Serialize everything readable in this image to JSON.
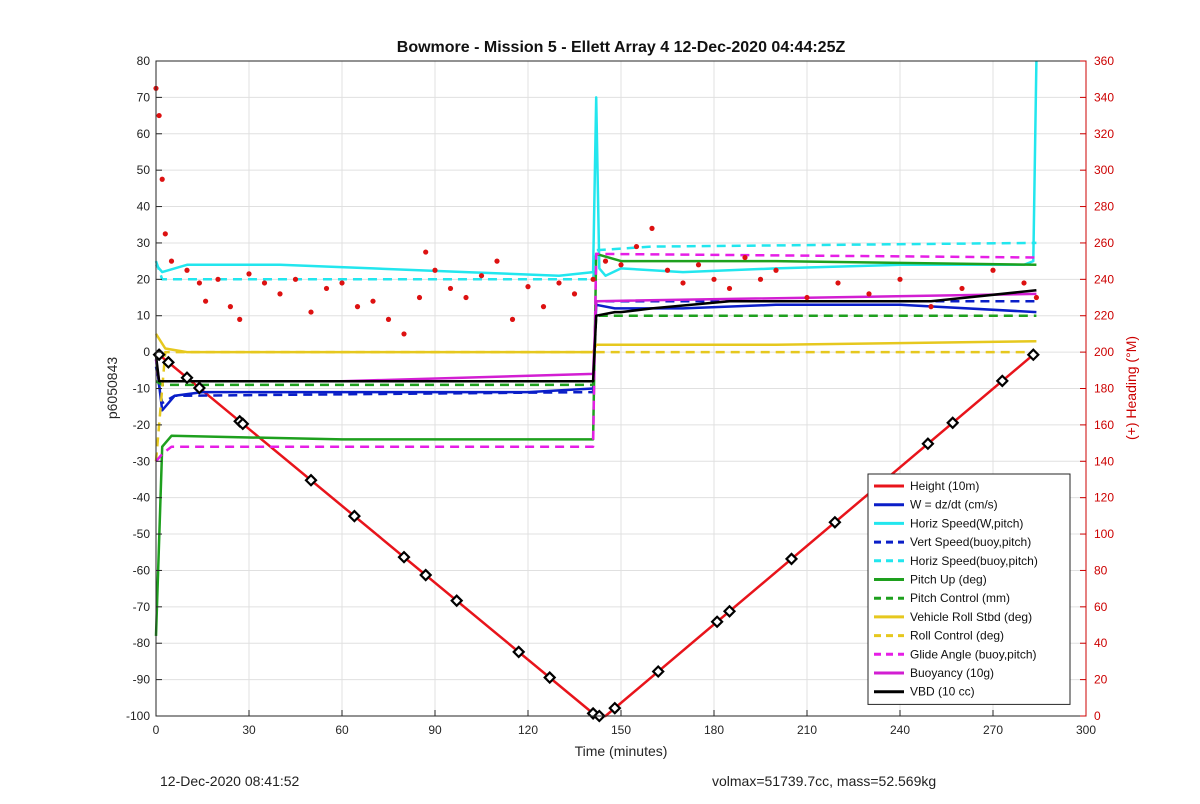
{
  "chart_data": {
    "type": "line",
    "title": "Bowmore - Mission 5 - Ellett Array 4 12-Dec-2020 04:44:25Z",
    "xlabel": "Time (minutes)",
    "ylabel": "p6050843",
    "y2label": "(+) Heading (°M)",
    "xlim": [
      0,
      300
    ],
    "ylim": [
      -100,
      80
    ],
    "y2lim": [
      0,
      360
    ],
    "x_ticks": [
      0,
      30,
      60,
      90,
      120,
      150,
      180,
      210,
      240,
      270,
      300
    ],
    "y_ticks": [
      80,
      70,
      60,
      50,
      40,
      30,
      20,
      10,
      0,
      -10,
      -20,
      -30,
      -40,
      -50,
      -60,
      -70,
      -80,
      -90,
      -100
    ],
    "y2_ticks": [
      360,
      340,
      320,
      300,
      280,
      260,
      240,
      220,
      200,
      180,
      160,
      140,
      120,
      100,
      80,
      60,
      40,
      20,
      0
    ],
    "grid": true,
    "legend_position": "bottom-right",
    "colors": {
      "left_axis": "#222222",
      "right_axis": "#cc0000",
      "grid": "#e0e0e0"
    },
    "series": [
      {
        "name": "Height (10m)",
        "color": "#e8141b",
        "style": "solid",
        "x": [
          0,
          142,
          145,
          284
        ],
        "y": [
          0,
          -100,
          -100,
          0
        ]
      },
      {
        "name": "W = dz/dt (cm/s)",
        "color": "#0a1ec8",
        "style": "solid",
        "x": [
          0,
          2,
          6,
          15,
          60,
          120,
          141,
          142,
          148,
          170,
          200,
          240,
          284
        ],
        "y": [
          -2,
          -16,
          -12,
          -11,
          -11,
          -11,
          -10,
          13,
          12,
          12,
          13,
          13,
          11
        ]
      },
      {
        "name": "Horiz Speed(W,pitch)",
        "color": "#22e6ee",
        "style": "solid",
        "x": [
          0,
          2,
          10,
          40,
          70,
          100,
          130,
          141,
          142,
          143,
          145,
          150,
          170,
          200,
          240,
          280,
          283,
          284
        ],
        "y": [
          24,
          22,
          24,
          24,
          23,
          22,
          21,
          22,
          70,
          23,
          21,
          23,
          22,
          23,
          24,
          24,
          25,
          80
        ]
      },
      {
        "name": "Vert Speed(buoy,pitch)",
        "color": "#0a1ec8",
        "style": "dashed",
        "x": [
          0,
          2,
          6,
          141,
          142,
          284
        ],
        "y": [
          -4,
          -14,
          -12,
          -11,
          14,
          14
        ]
      },
      {
        "name": "Horiz Speed(buoy,pitch)",
        "color": "#22e6ee",
        "style": "dashed",
        "x": [
          0,
          2,
          141,
          142,
          160,
          284
        ],
        "y": [
          25,
          20,
          20,
          28,
          29,
          30
        ]
      },
      {
        "name": "Pitch Up (deg)",
        "color": "#1ea01e",
        "style": "solid",
        "x": [
          0,
          2,
          5,
          60,
          120,
          141,
          142,
          150,
          200,
          284
        ],
        "y": [
          -78,
          -26,
          -23,
          -24,
          -24,
          -24,
          27,
          25,
          25,
          24
        ]
      },
      {
        "name": "Pitch Control (mm)",
        "color": "#1ea01e",
        "style": "dashed",
        "x": [
          0,
          2,
          141,
          142,
          284
        ],
        "y": [
          -8,
          -9,
          -9,
          10,
          10
        ]
      },
      {
        "name": "Vehicle Roll Stbd (deg)",
        "color": "#e6c81e",
        "style": "solid",
        "x": [
          0,
          3,
          10,
          60,
          120,
          141,
          142,
          150,
          200,
          284
        ],
        "y": [
          5,
          1,
          0,
          0,
          0,
          0,
          2,
          2,
          2,
          3
        ]
      },
      {
        "name": "Roll Control (deg)",
        "color": "#e6c81e",
        "style": "dashed",
        "x": [
          0,
          3,
          141,
          142,
          284
        ],
        "y": [
          -30,
          0,
          0,
          0,
          0
        ]
      },
      {
        "name": "Glide Angle (buoy,pitch)",
        "color": "#e61ee6",
        "style": "dashed",
        "x": [
          0,
          2,
          5,
          141,
          142,
          284
        ],
        "y": [
          -30,
          -28,
          -26,
          -26,
          27,
          26
        ]
      },
      {
        "name": "Buoyancy (10g)",
        "color": "#d21ed2",
        "style": "solid",
        "x": [
          0,
          1,
          5,
          60,
          141,
          142,
          284
        ],
        "y": [
          -2,
          -8,
          -8,
          -8,
          -6,
          14,
          16
        ]
      },
      {
        "name": "VBD (10 cc)",
        "color": "#000000",
        "style": "solid",
        "x": [
          0,
          1,
          141,
          142,
          148,
          150,
          160,
          185,
          200,
          250,
          284
        ],
        "y": [
          -1,
          -8,
          -8,
          10,
          11,
          11,
          12,
          14,
          14,
          14,
          17
        ]
      }
    ],
    "heading_scatter": {
      "color": "#dd1111",
      "axis": "right",
      "x": [
        0,
        1,
        2,
        3,
        5,
        10,
        14,
        16,
        20,
        24,
        27,
        30,
        35,
        40,
        45,
        50,
        55,
        60,
        65,
        70,
        75,
        80,
        85,
        87,
        90,
        95,
        100,
        105,
        110,
        115,
        120,
        125,
        130,
        135,
        141,
        145,
        150,
        155,
        160,
        165,
        170,
        175,
        180,
        185,
        190,
        195,
        200,
        210,
        220,
        230,
        240,
        250,
        260,
        270,
        280,
        284
      ],
      "y": [
        345,
        330,
        295,
        265,
        250,
        245,
        238,
        228,
        240,
        225,
        218,
        243,
        238,
        232,
        240,
        222,
        235,
        238,
        225,
        228,
        218,
        210,
        230,
        255,
        245,
        235,
        230,
        242,
        250,
        218,
        236,
        225,
        238,
        232,
        240,
        250,
        248,
        258,
        268,
        245,
        238,
        248,
        240,
        235,
        252,
        240,
        245,
        230,
        238,
        232,
        240,
        225,
        235,
        245,
        238,
        230
      ]
    },
    "waypoint_markers": {
      "color": "#000000",
      "x": [
        1,
        4,
        10,
        14,
        27,
        28,
        50,
        64,
        80,
        87,
        97,
        117,
        127,
        141,
        143,
        148,
        162,
        181,
        185,
        205,
        219,
        249,
        257,
        273,
        283
      ]
    },
    "footer_left": "12-Dec-2020 08:41:52",
    "footer_right": "volmax=51739.7cc, mass=52.569kg"
  }
}
